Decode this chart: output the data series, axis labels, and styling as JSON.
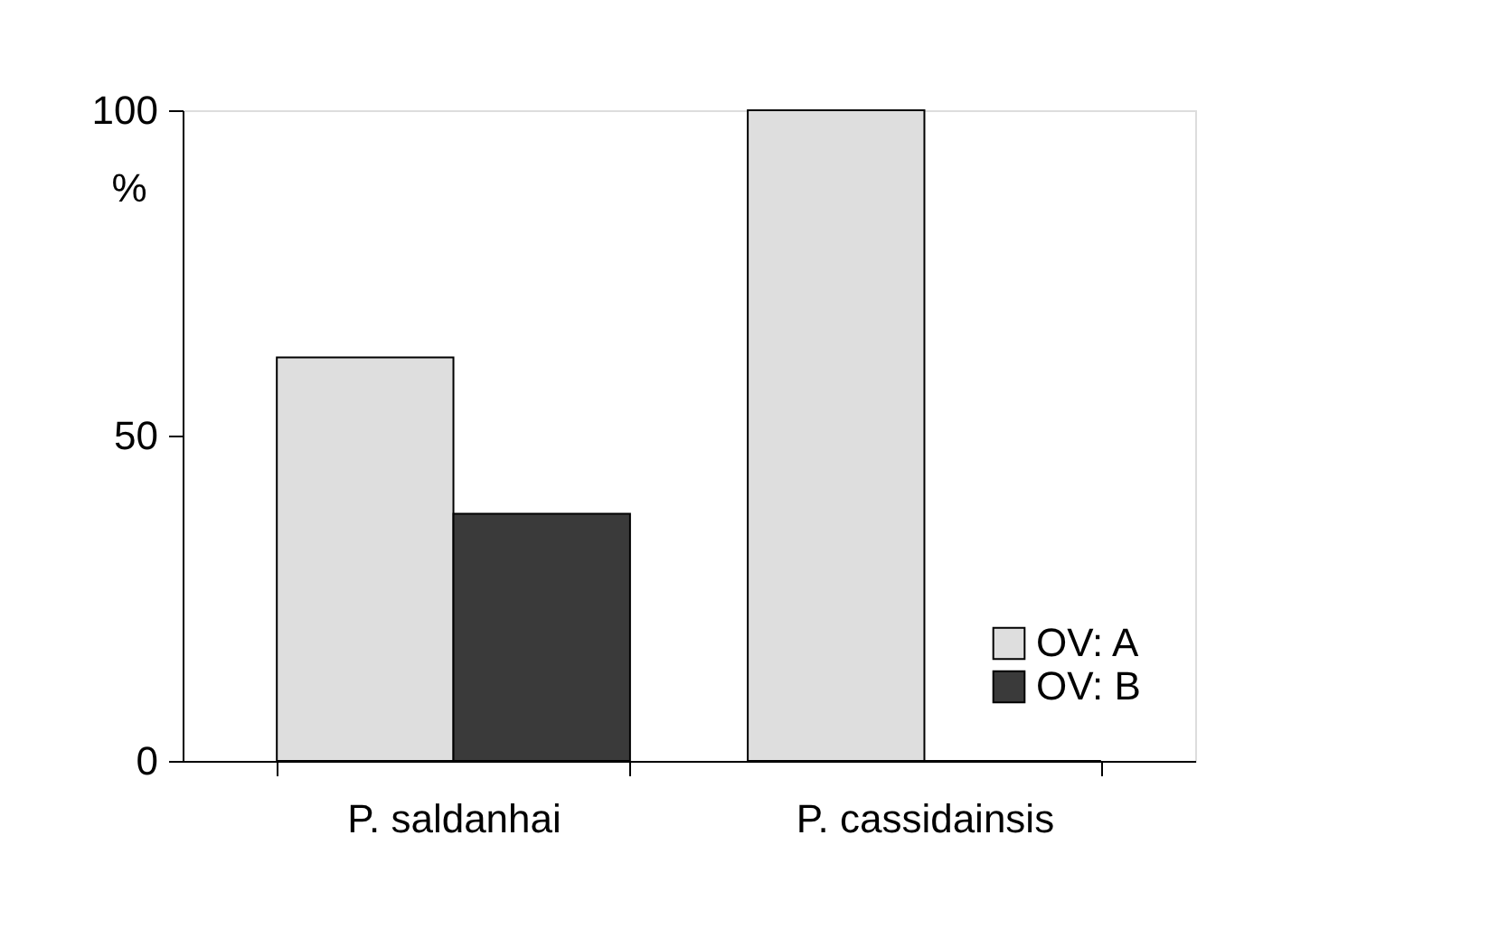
{
  "chart_data": {
    "type": "bar",
    "ylabel": "%",
    "categories": [
      "P. saldanhai",
      "P. cassidainsis"
    ],
    "series": [
      {
        "name": "OV: A",
        "color": "#dedede",
        "values": [
          62,
          100
        ]
      },
      {
        "name": "OV: B",
        "color": "#3a3a3a",
        "values": [
          38,
          0
        ]
      }
    ],
    "ylim": [
      0,
      100
    ],
    "yticks": [
      0,
      50,
      100
    ],
    "grid": false,
    "legend": "bottom right"
  }
}
